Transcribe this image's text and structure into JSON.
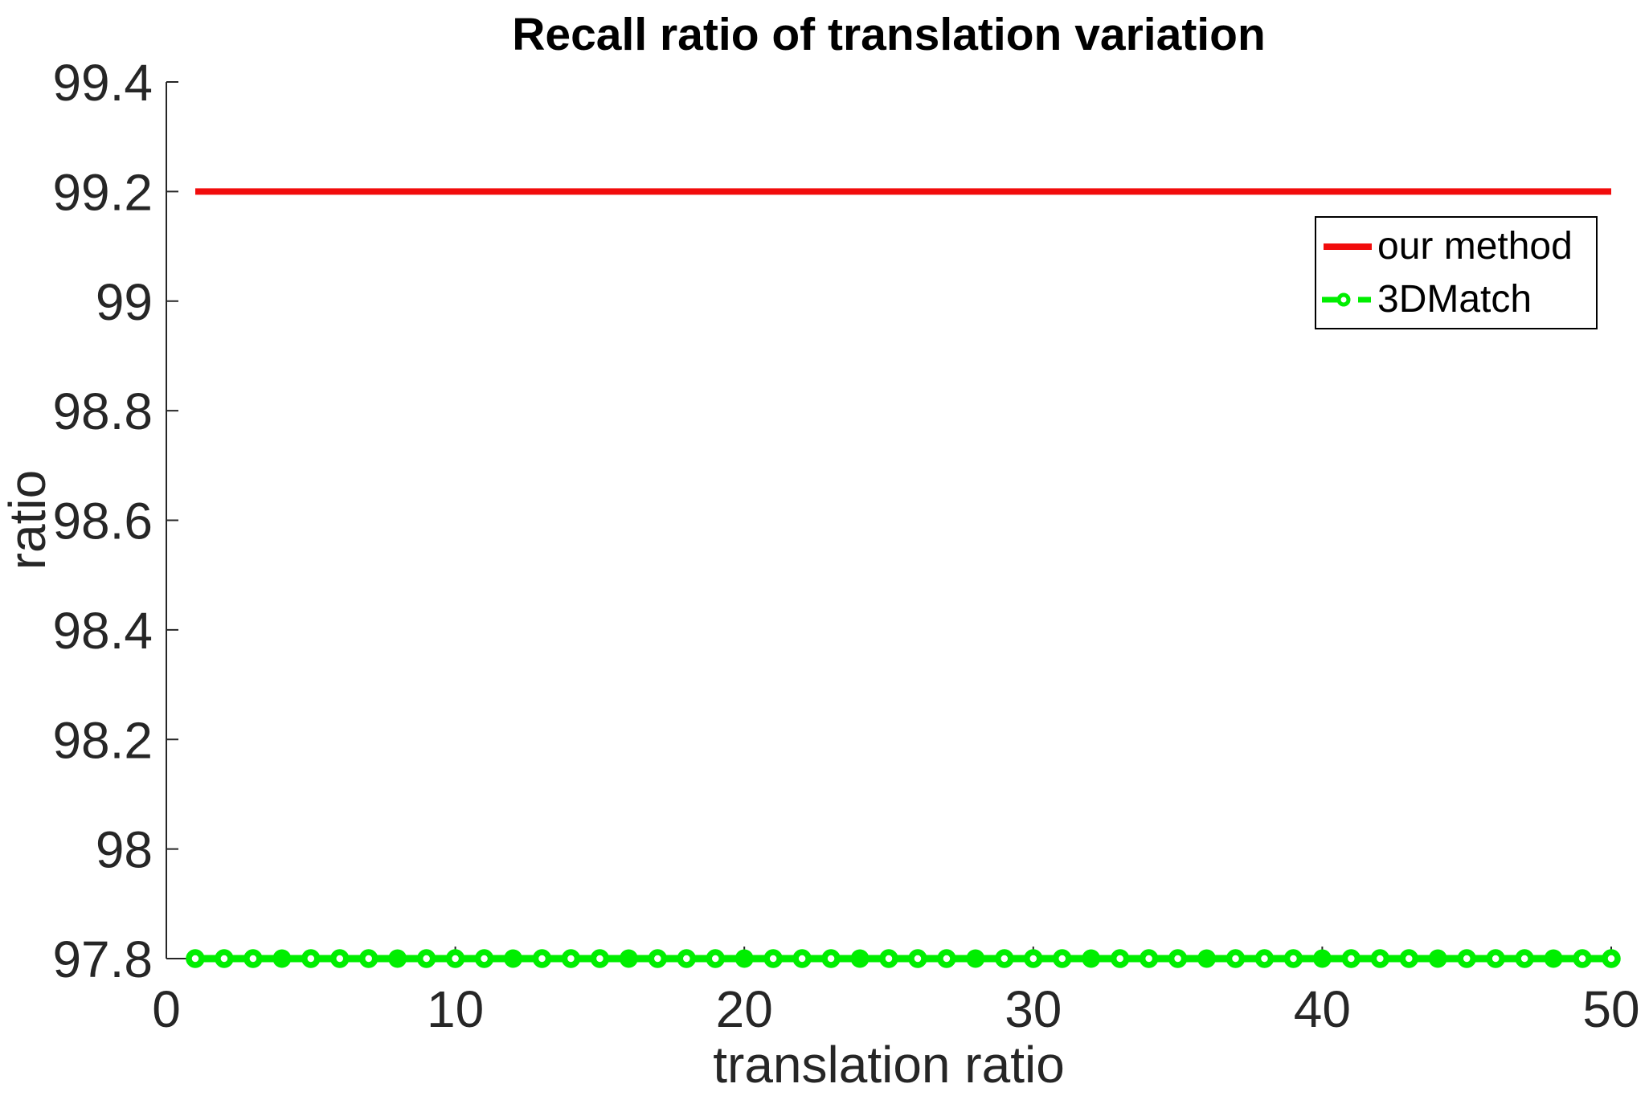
{
  "chart_data": {
    "type": "line",
    "title": "Recall ratio of translation variation",
    "xlabel": "translation ratio",
    "ylabel": "ratio",
    "xlim": [
      0,
      50
    ],
    "ylim": [
      97.8,
      99.4
    ],
    "x_ticks": [
      "0",
      "10",
      "20",
      "30",
      "40",
      "50"
    ],
    "y_ticks": [
      "97.8",
      "98",
      "98.2",
      "98.4",
      "98.6",
      "98.8",
      "99",
      "99.2",
      "99.4"
    ],
    "grid": false,
    "legend_position": "upper right",
    "x": [
      1,
      2,
      3,
      4,
      5,
      6,
      7,
      8,
      9,
      10,
      11,
      12,
      13,
      14,
      15,
      16,
      17,
      18,
      19,
      20,
      21,
      22,
      23,
      24,
      25,
      26,
      27,
      28,
      29,
      30,
      31,
      32,
      33,
      34,
      35,
      36,
      37,
      38,
      39,
      40,
      41,
      42,
      43,
      44,
      45,
      46,
      47,
      48,
      49,
      50
    ],
    "series": [
      {
        "name": "our method",
        "color": "#f10c0c",
        "style": "solid",
        "marker": "none",
        "values": [
          99.2,
          99.2,
          99.2,
          99.2,
          99.2,
          99.2,
          99.2,
          99.2,
          99.2,
          99.2,
          99.2,
          99.2,
          99.2,
          99.2,
          99.2,
          99.2,
          99.2,
          99.2,
          99.2,
          99.2,
          99.2,
          99.2,
          99.2,
          99.2,
          99.2,
          99.2,
          99.2,
          99.2,
          99.2,
          99.2,
          99.2,
          99.2,
          99.2,
          99.2,
          99.2,
          99.2,
          99.2,
          99.2,
          99.2,
          99.2,
          99.2,
          99.2,
          99.2,
          99.2,
          99.2,
          99.2,
          99.2,
          99.2,
          99.2,
          99.2
        ]
      },
      {
        "name": "3DMatch",
        "color": "#00ee00",
        "style": "dash-dot",
        "marker": "circle",
        "values": [
          97.8,
          97.8,
          97.8,
          97.8,
          97.8,
          97.8,
          97.8,
          97.8,
          97.8,
          97.8,
          97.8,
          97.8,
          97.8,
          97.8,
          97.8,
          97.8,
          97.8,
          97.8,
          97.8,
          97.8,
          97.8,
          97.8,
          97.8,
          97.8,
          97.8,
          97.8,
          97.8,
          97.8,
          97.8,
          97.8,
          97.8,
          97.8,
          97.8,
          97.8,
          97.8,
          97.8,
          97.8,
          97.8,
          97.8,
          97.8,
          97.8,
          97.8,
          97.8,
          97.8,
          97.8,
          97.8,
          97.8,
          97.8,
          97.8,
          97.8
        ]
      }
    ]
  },
  "colors": {
    "axis": "#262626",
    "tick_label": "#262626",
    "title": "#000000",
    "legend_border": "#000000",
    "legend_background": "#ffffff",
    "background": "#ffffff"
  }
}
